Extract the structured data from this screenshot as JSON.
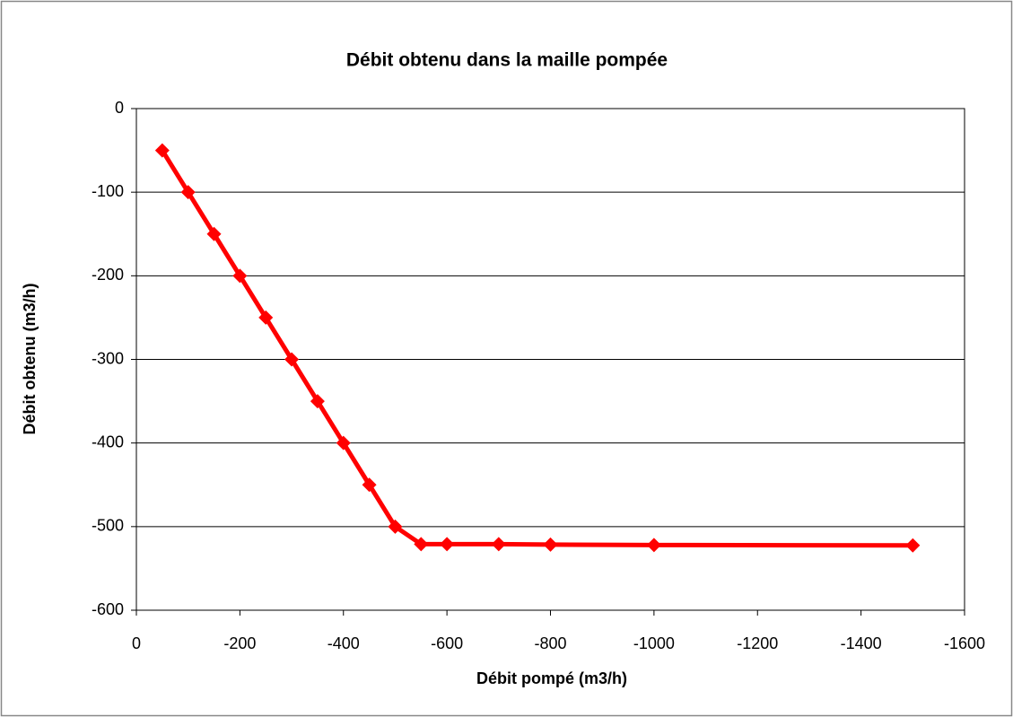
{
  "chart_data": {
    "type": "line",
    "title": "Débit obtenu dans la maille pompée",
    "x_label": "Débit pompé (m3/h)",
    "y_label": "Débit obtenu (m3/h)",
    "x": [
      -50,
      -100,
      -150,
      -200,
      -250,
      -300,
      -350,
      -400,
      -450,
      -500,
      -550,
      -600,
      -700,
      -800,
      -1000,
      -1500
    ],
    "series": [
      {
        "name": "Débit obtenu",
        "color": "#ff0000",
        "values": [
          -50,
          -100,
          -150,
          -200,
          -250,
          -300,
          -350,
          -400,
          -450,
          -500,
          -521,
          -521,
          -521,
          -521.5,
          -522,
          -522.5
        ]
      }
    ],
    "xlim": [
      0,
      -1600
    ],
    "xticks": [
      0,
      -200,
      -400,
      -600,
      -800,
      -1000,
      -1200,
      -1400,
      -1600
    ],
    "ylim": [
      -600,
      0
    ],
    "yticks": [
      0,
      -100,
      -200,
      -300,
      -400,
      -500,
      -600
    ],
    "grid": true
  }
}
